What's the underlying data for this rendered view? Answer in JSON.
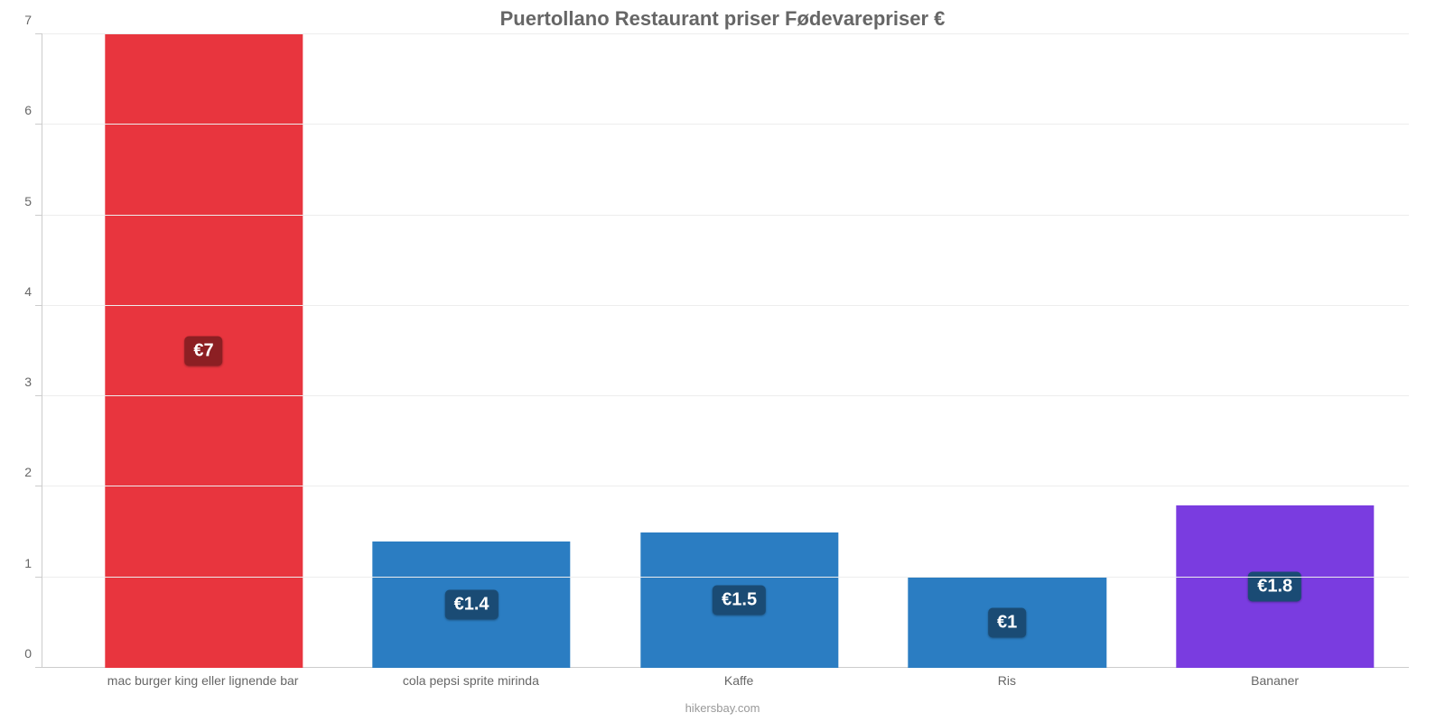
{
  "chart": {
    "type": "bar",
    "title": "Puertollano Restaurant priser Fødevarepriser €",
    "title_fontsize": 22,
    "title_color": "#666666",
    "background_color": "#ffffff",
    "grid_color": "#ededed",
    "axis_color": "#cccccc",
    "tick_label_color": "#666666",
    "tick_fontsize": 14,
    "x_label_fontsize": 14,
    "value_badge_fontsize": 20,
    "credit_fontsize": 13,
    "credit_color": "#999999",
    "ylim": [
      0,
      7
    ],
    "ytick_step": 1,
    "yticks": [
      0,
      1,
      2,
      3,
      4,
      5,
      6,
      7
    ],
    "bar_width_pct": 14.5,
    "categories": [
      "mac burger king eller lignende bar",
      "cola pepsi sprite mirinda",
      "Kaffe",
      "Ris",
      "Bananer"
    ],
    "values": [
      7,
      1.4,
      1.5,
      1,
      1.8
    ],
    "value_labels": [
      "€7",
      "€1.4",
      "€1.5",
      "€1",
      "€1.8"
    ],
    "bar_colors": [
      "#e8353e",
      "#2b7dc2",
      "#2b7dc2",
      "#2b7dc2",
      "#7a3ce0"
    ],
    "badge_colors": [
      "#8c1f23",
      "#1a4b74",
      "#1a4b74",
      "#1a4b74",
      "#1a4b74"
    ],
    "x_positions_pct": [
      11.8,
      31.4,
      51,
      70.6,
      90.2
    ],
    "credit": "hikersbay.com"
  }
}
